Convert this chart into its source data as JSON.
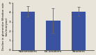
{
  "categories": [
    "Nonsmokers",
    "Ex-smokers",
    "Smokers"
  ],
  "values": [
    4.1,
    3.1,
    4.1
  ],
  "errors": [
    0.55,
    1.3,
    0.45
  ],
  "bar_color": "#3a52a0",
  "bar_width": 0.55,
  "ylim": [
    0,
    5
  ],
  "yticks": [
    0,
    1,
    2,
    3,
    4,
    5
  ],
  "ylabel": "Decline in glomerular filtration rate\n(mL/min/year)",
  "background_color": "#e8e4da",
  "title": "",
  "ylabel_fontsize": 2.8,
  "tick_fontsize": 3.2,
  "xlabel_fontsize": 3.2
}
